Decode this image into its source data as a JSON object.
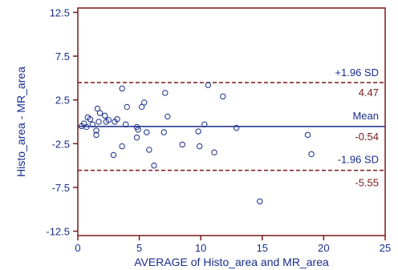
{
  "chart_data": {
    "type": "scatter",
    "xlabel": "AVERAGE of Histo_area and MR_area",
    "ylabel": "Histo_area - MR_area",
    "xlim": [
      0,
      25
    ],
    "ylim": [
      -13,
      13
    ],
    "x_ticks": [
      0,
      5,
      10,
      15,
      20,
      25
    ],
    "y_ticks": [
      12.5,
      7.5,
      2.5,
      -2.5,
      -7.5,
      -12.5
    ],
    "grid": false,
    "colors": {
      "axis": "#7a1a1a",
      "text": "#1a2e8c",
      "mean_line": "#1a2e8c",
      "sd_line": "#7a1a1a",
      "points": "#1a2e8c"
    },
    "mean": {
      "label": "Mean",
      "value_label": "-0.54",
      "value": -0.54
    },
    "upper_loa": {
      "label": "+1.96 SD",
      "value_label": "4.47",
      "value": 4.47
    },
    "lower_loa": {
      "label": "-1.96 SD",
      "value_label": "-5.55",
      "value": -5.55
    },
    "points": [
      [
        0.3,
        -0.5
      ],
      [
        0.5,
        -0.2
      ],
      [
        0.7,
        -0.6
      ],
      [
        0.8,
        0.5
      ],
      [
        1.0,
        0.3
      ],
      [
        1.2,
        -0.3
      ],
      [
        1.5,
        -1.5
      ],
      [
        1.5,
        -1.0
      ],
      [
        1.6,
        1.5
      ],
      [
        1.7,
        0.0
      ],
      [
        1.8,
        1.0
      ],
      [
        2.2,
        0.7
      ],
      [
        2.3,
        0.0
      ],
      [
        2.5,
        0.2
      ],
      [
        2.9,
        -3.8
      ],
      [
        3.0,
        0.0
      ],
      [
        3.2,
        0.3
      ],
      [
        3.6,
        3.8
      ],
      [
        3.6,
        -2.8
      ],
      [
        3.9,
        -0.3
      ],
      [
        4.0,
        1.7
      ],
      [
        4.8,
        -1.8
      ],
      [
        4.8,
        -0.6
      ],
      [
        4.9,
        -0.9
      ],
      [
        5.2,
        1.7
      ],
      [
        5.4,
        2.2
      ],
      [
        5.6,
        -1.2
      ],
      [
        5.8,
        -3.2
      ],
      [
        6.2,
        -5.0
      ],
      [
        7.0,
        -1.2
      ],
      [
        7.1,
        3.3
      ],
      [
        7.3,
        0.6
      ],
      [
        8.5,
        -2.6
      ],
      [
        9.8,
        -1.1
      ],
      [
        9.9,
        -2.8
      ],
      [
        10.3,
        -0.3
      ],
      [
        10.6,
        4.2
      ],
      [
        11.1,
        -3.5
      ],
      [
        11.8,
        2.9
      ],
      [
        12.9,
        -0.7
      ],
      [
        14.8,
        -9.1
      ],
      [
        18.7,
        -1.5
      ],
      [
        19.0,
        -3.7
      ]
    ]
  }
}
